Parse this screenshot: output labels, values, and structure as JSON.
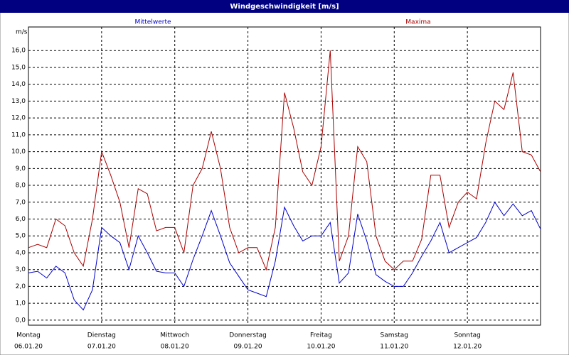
{
  "chart_data": {
    "type": "line",
    "title": "Windgeschwindigkeit [m/s]",
    "y_label": "m/s",
    "x": [
      0,
      3,
      6,
      9,
      12,
      15,
      18,
      21,
      24,
      27,
      30,
      33,
      36,
      39,
      42,
      45,
      48,
      51,
      54,
      57,
      60,
      63,
      66,
      69,
      72,
      75,
      78,
      81,
      84,
      87,
      90,
      93,
      96,
      99,
      102,
      105,
      108,
      111,
      114,
      117,
      120,
      123,
      126,
      129,
      132,
      135,
      138,
      141,
      144,
      147,
      150,
      153,
      156,
      159,
      162,
      165,
      168
    ],
    "series": [
      {
        "name": "Mittelwerte",
        "color": "#0000cc",
        "values": [
          2.8,
          2.9,
          2.5,
          3.2,
          2.8,
          1.2,
          0.6,
          1.8,
          5.5,
          5.0,
          4.6,
          3.0,
          5.0,
          4.0,
          2.9,
          2.8,
          2.8,
          2.0,
          3.6,
          5.0,
          6.5,
          5.0,
          3.4,
          2.6,
          1.8,
          1.6,
          1.4,
          3.5,
          6.7,
          5.6,
          4.7,
          5.0,
          5.0,
          5.8,
          2.2,
          2.8,
          6.3,
          4.7,
          2.7,
          2.3,
          2.0,
          2.0,
          2.8,
          3.8,
          4.7,
          5.8,
          4.0,
          4.3,
          4.6,
          4.9,
          5.8,
          7.0,
          6.2,
          6.9,
          6.2,
          6.5,
          5.4
        ]
      },
      {
        "name": "Maxima",
        "color": "#aa0000",
        "values": [
          4.3,
          4.5,
          4.3,
          6.0,
          5.6,
          4.0,
          3.2,
          6.0,
          10.0,
          8.6,
          7.0,
          4.3,
          7.8,
          7.5,
          5.3,
          5.5,
          5.5,
          4.0,
          8.0,
          9.0,
          11.2,
          9.0,
          5.5,
          4.0,
          4.3,
          4.3,
          3.0,
          5.5,
          13.5,
          11.4,
          8.8,
          8.0,
          10.3,
          16.0,
          3.5,
          5.0,
          10.3,
          9.4,
          5.0,
          3.5,
          3.0,
          3.5,
          3.5,
          4.8,
          8.6,
          8.6,
          5.5,
          7.0,
          7.6,
          7.2,
          10.5,
          13.0,
          12.5,
          14.7,
          10.0,
          9.8,
          8.8
        ]
      }
    ],
    "xlim": [
      0,
      168
    ],
    "xticks": [
      {
        "value": 0,
        "label": "Montag",
        "date": "06.01.20"
      },
      {
        "value": 24,
        "label": "Dienstag",
        "date": "07.01.20"
      },
      {
        "value": 48,
        "label": "Mittwoch",
        "date": "08.01.20"
      },
      {
        "value": 72,
        "label": "Donnerstag",
        "date": "09.01.20"
      },
      {
        "value": 96,
        "label": "Freitag",
        "date": "10.01.20"
      },
      {
        "value": 120,
        "label": "Samstag",
        "date": "11.01.20"
      },
      {
        "value": 144,
        "label": "Sonntag",
        "date": "12.01.20"
      }
    ],
    "ylim": [
      -0.3,
      17.4
    ],
    "yticks": [
      {
        "value": 0,
        "label": "0,0"
      },
      {
        "value": 1,
        "label": "1,0"
      },
      {
        "value": 2,
        "label": "2,0"
      },
      {
        "value": 3,
        "label": "3,0"
      },
      {
        "value": 4,
        "label": "4,0"
      },
      {
        "value": 5,
        "label": "5,0"
      },
      {
        "value": 6,
        "label": "6,0"
      },
      {
        "value": 7,
        "label": "7,0"
      },
      {
        "value": 8,
        "label": "8,0"
      },
      {
        "value": 9,
        "label": "9,0"
      },
      {
        "value": 10,
        "label": "10,0"
      },
      {
        "value": 11,
        "label": "11,0"
      },
      {
        "value": 12,
        "label": "12,0"
      },
      {
        "value": 13,
        "label": "13,0"
      },
      {
        "value": 14,
        "label": "14,0"
      },
      {
        "value": 15,
        "label": "15,0"
      },
      {
        "value": 16,
        "label": "16,0"
      }
    ],
    "grid": true
  }
}
